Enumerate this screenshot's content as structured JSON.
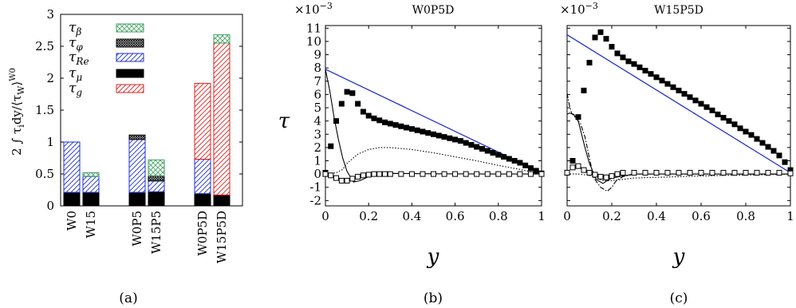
{
  "colors": {
    "beta": "#3fa060",
    "phi": "#000000",
    "re": "#1f2fd0",
    "mu": "#000000",
    "g": "#e02020",
    "line_blue": "#1f2fd0",
    "markers": "#000000"
  },
  "chart_data": [
    {
      "type": "bar",
      "stacked": true,
      "ylabel": "2 ∫ τ_i dy / ⟨τ_W⟩^W0",
      "ylim": [
        0,
        3
      ],
      "yticks": [
        "0",
        "0.5",
        "1",
        "1.5",
        "2",
        "2.5",
        "3"
      ],
      "categories": [
        "W0",
        "W15",
        "W0P5",
        "W15P5",
        "W0P5D",
        "W15P5D"
      ],
      "legend_position": "top-left",
      "series": [
        {
          "name": "τμ",
          "key": "mu",
          "values": [
            0.21,
            0.21,
            0.21,
            0.22,
            0.19,
            0.17
          ]
        },
        {
          "name": "τRe",
          "key": "re",
          "values": [
            0.79,
            0.25,
            0.83,
            0.17,
            0.54,
            0.0
          ]
        },
        {
          "name": "τg",
          "key": "g",
          "values": [
            0.0,
            0.0,
            0.0,
            0.0,
            1.19,
            2.38
          ]
        },
        {
          "name": "τφ",
          "key": "phi",
          "values": [
            0.0,
            0.0,
            0.07,
            0.08,
            0.0,
            0.0
          ]
        },
        {
          "name": "τβ",
          "key": "beta",
          "values": [
            0.0,
            0.06,
            0.0,
            0.25,
            0.0,
            0.13
          ]
        }
      ],
      "legend_order": [
        "τβ",
        "τφ",
        "τRe",
        "τμ",
        "τg"
      ],
      "caption": "(a)"
    },
    {
      "type": "line",
      "title": "W0P5D",
      "xlabel": "y",
      "ylabel": "τ",
      "scale_label": "×10",
      "scale_exp": "−3",
      "xlim": [
        0,
        1
      ],
      "ylim": [
        -2.4,
        11.2
      ],
      "xticks": [
        "0",
        "0.2",
        "0.4",
        "0.6",
        "0.8",
        "1"
      ],
      "yticks": [
        "-2",
        "-1",
        "0",
        "1",
        "2",
        "3",
        "4",
        "5",
        "6",
        "7",
        "8",
        "9",
        "10",
        "11"
      ],
      "series": [
        {
          "style": "solid-blue",
          "x": [
            0,
            1
          ],
          "y": [
            7.9,
            0.1
          ]
        },
        {
          "style": "solid-black",
          "x": [
            0,
            0.02,
            0.04,
            0.06,
            0.08,
            0.1,
            0.13,
            0.16,
            0.2,
            0.3,
            0.5,
            0.8,
            1.0
          ],
          "y": [
            7.9,
            6.3,
            4.3,
            2.6,
            1.2,
            0.2,
            -0.6,
            -0.5,
            -0.2,
            0.05,
            0.02,
            0.0,
            0.0
          ]
        },
        {
          "style": "dotted",
          "x": [
            0,
            0.02,
            0.05,
            0.08,
            0.1,
            0.15,
            0.2,
            0.25,
            0.3,
            0.4,
            0.5,
            0.6,
            0.7,
            0.8,
            0.9,
            1.0
          ],
          "y": [
            0.0,
            0.02,
            0.1,
            0.35,
            0.8,
            1.5,
            1.85,
            2.0,
            2.0,
            1.85,
            1.6,
            1.3,
            1.0,
            0.65,
            0.35,
            0.0
          ]
        },
        {
          "style": "filled-square",
          "x": [
            0.0,
            0.025,
            0.05,
            0.075,
            0.1,
            0.125,
            0.15,
            0.175,
            0.2,
            0.225,
            0.25,
            0.275,
            0.3,
            0.325,
            0.35,
            0.375,
            0.4,
            0.425,
            0.45,
            0.475,
            0.5,
            0.525,
            0.55,
            0.575,
            0.6,
            0.625,
            0.65,
            0.675,
            0.7,
            0.725,
            0.75,
            0.775,
            0.8,
            0.825,
            0.85,
            0.875,
            0.9,
            0.925,
            0.95,
            0.975,
            1.0
          ],
          "y": [
            0.1,
            2.1,
            4.0,
            5.3,
            6.2,
            6.1,
            5.3,
            4.7,
            4.4,
            4.2,
            4.05,
            3.9,
            3.8,
            3.7,
            3.6,
            3.5,
            3.4,
            3.3,
            3.2,
            3.1,
            3.0,
            2.9,
            2.8,
            2.7,
            2.6,
            2.5,
            2.35,
            2.2,
            2.05,
            1.9,
            1.75,
            1.6,
            1.45,
            1.3,
            1.15,
            1.0,
            0.85,
            0.65,
            0.45,
            0.25,
            0.05
          ]
        },
        {
          "style": "open-square",
          "x": [
            0.0,
            0.025,
            0.05,
            0.075,
            0.1,
            0.125,
            0.15,
            0.175,
            0.2,
            0.225,
            0.25,
            0.275,
            0.3,
            0.35,
            0.4,
            0.45,
            0.5,
            0.55,
            0.6,
            0.65,
            0.7,
            0.75,
            0.8,
            0.85,
            0.9,
            0.95,
            1.0
          ],
          "y": [
            0.0,
            -0.1,
            -0.3,
            -0.5,
            -0.5,
            -0.35,
            -0.2,
            -0.1,
            -0.05,
            0.0,
            0.0,
            0.0,
            0.0,
            0.0,
            0.0,
            0.0,
            0.0,
            0.0,
            0.0,
            0.0,
            0.0,
            0.0,
            0.0,
            0.0,
            0.0,
            0.0,
            0.0
          ]
        }
      ],
      "caption": "(b)"
    },
    {
      "type": "line",
      "title": "W15P5D",
      "xlabel": "y",
      "scale_label": "×10",
      "scale_exp": "−3",
      "xlim": [
        0,
        1
      ],
      "ylim": [
        -2.4,
        11.2
      ],
      "xticks": [
        "0",
        "0.2",
        "0.4",
        "0.6",
        "0.8",
        "1"
      ],
      "series": [
        {
          "style": "solid-blue",
          "x": [
            0,
            1
          ],
          "y": [
            10.5,
            0.1
          ]
        },
        {
          "style": "solid-black",
          "x": [
            0,
            0.01,
            0.03,
            0.05,
            0.08,
            0.1,
            0.13,
            0.16,
            0.2,
            0.3,
            0.5,
            1.0
          ],
          "y": [
            4.5,
            4.6,
            4.5,
            4.0,
            2.0,
            0.8,
            -0.4,
            -0.7,
            -0.3,
            0.0,
            0.0,
            0.0
          ]
        },
        {
          "style": "dashdot",
          "x": [
            0,
            0.01,
            0.02,
            0.04,
            0.06,
            0.08,
            0.1,
            0.12,
            0.15,
            0.18,
            0.2,
            0.22,
            0.25,
            0.3,
            0.5,
            1.0
          ],
          "y": [
            6.1,
            5.2,
            4.6,
            4.2,
            3.8,
            2.8,
            1.2,
            -0.3,
            -1.0,
            -1.3,
            -1.0,
            -0.5,
            -0.2,
            0.0,
            0.0,
            0.0
          ]
        },
        {
          "style": "dotted",
          "x": [
            0,
            0.05,
            0.1,
            0.13,
            0.16,
            0.2,
            0.25,
            0.3,
            0.5,
            0.7,
            0.9,
            1.0
          ],
          "y": [
            0.0,
            0.0,
            -0.1,
            -0.3,
            -0.5,
            -0.5,
            -0.4,
            -0.3,
            -0.2,
            -0.1,
            -0.05,
            0.0
          ]
        },
        {
          "style": "filled-square",
          "x": [
            0.0,
            0.025,
            0.05,
            0.075,
            0.1,
            0.125,
            0.15,
            0.175,
            0.2,
            0.225,
            0.25,
            0.275,
            0.3,
            0.325,
            0.35,
            0.375,
            0.4,
            0.425,
            0.45,
            0.475,
            0.5,
            0.525,
            0.55,
            0.575,
            0.6,
            0.625,
            0.65,
            0.675,
            0.7,
            0.725,
            0.75,
            0.775,
            0.8,
            0.825,
            0.85,
            0.875,
            0.9,
            0.925,
            0.95,
            0.975,
            1.0
          ],
          "y": [
            0.1,
            1.0,
            4.3,
            6.3,
            8.4,
            10.3,
            10.7,
            10.2,
            9.6,
            9.1,
            8.8,
            8.5,
            8.3,
            8.05,
            7.8,
            7.55,
            7.3,
            7.05,
            6.8,
            6.55,
            6.3,
            6.05,
            5.8,
            5.55,
            5.3,
            5.05,
            4.8,
            4.5,
            4.25,
            4.0,
            3.75,
            3.45,
            3.2,
            2.95,
            2.65,
            2.35,
            2.05,
            1.75,
            1.4,
            0.9,
            0.3
          ]
        },
        {
          "style": "open-square",
          "x": [
            0.0,
            0.025,
            0.05,
            0.075,
            0.1,
            0.125,
            0.15,
            0.175,
            0.2,
            0.225,
            0.25,
            0.3,
            0.35,
            0.4,
            0.45,
            0.5,
            0.55,
            0.6,
            0.65,
            0.7,
            0.75,
            0.8,
            0.85,
            0.9,
            0.95,
            1.0
          ],
          "y": [
            0.1,
            0.5,
            0.6,
            0.3,
            0.1,
            -0.05,
            -0.2,
            -0.25,
            -0.15,
            0.0,
            0.1,
            0.1,
            0.1,
            0.1,
            0.1,
            0.1,
            0.1,
            0.1,
            0.1,
            0.1,
            0.1,
            0.1,
            0.1,
            0.1,
            0.1,
            0.05
          ]
        }
      ],
      "caption": "(c)"
    }
  ]
}
